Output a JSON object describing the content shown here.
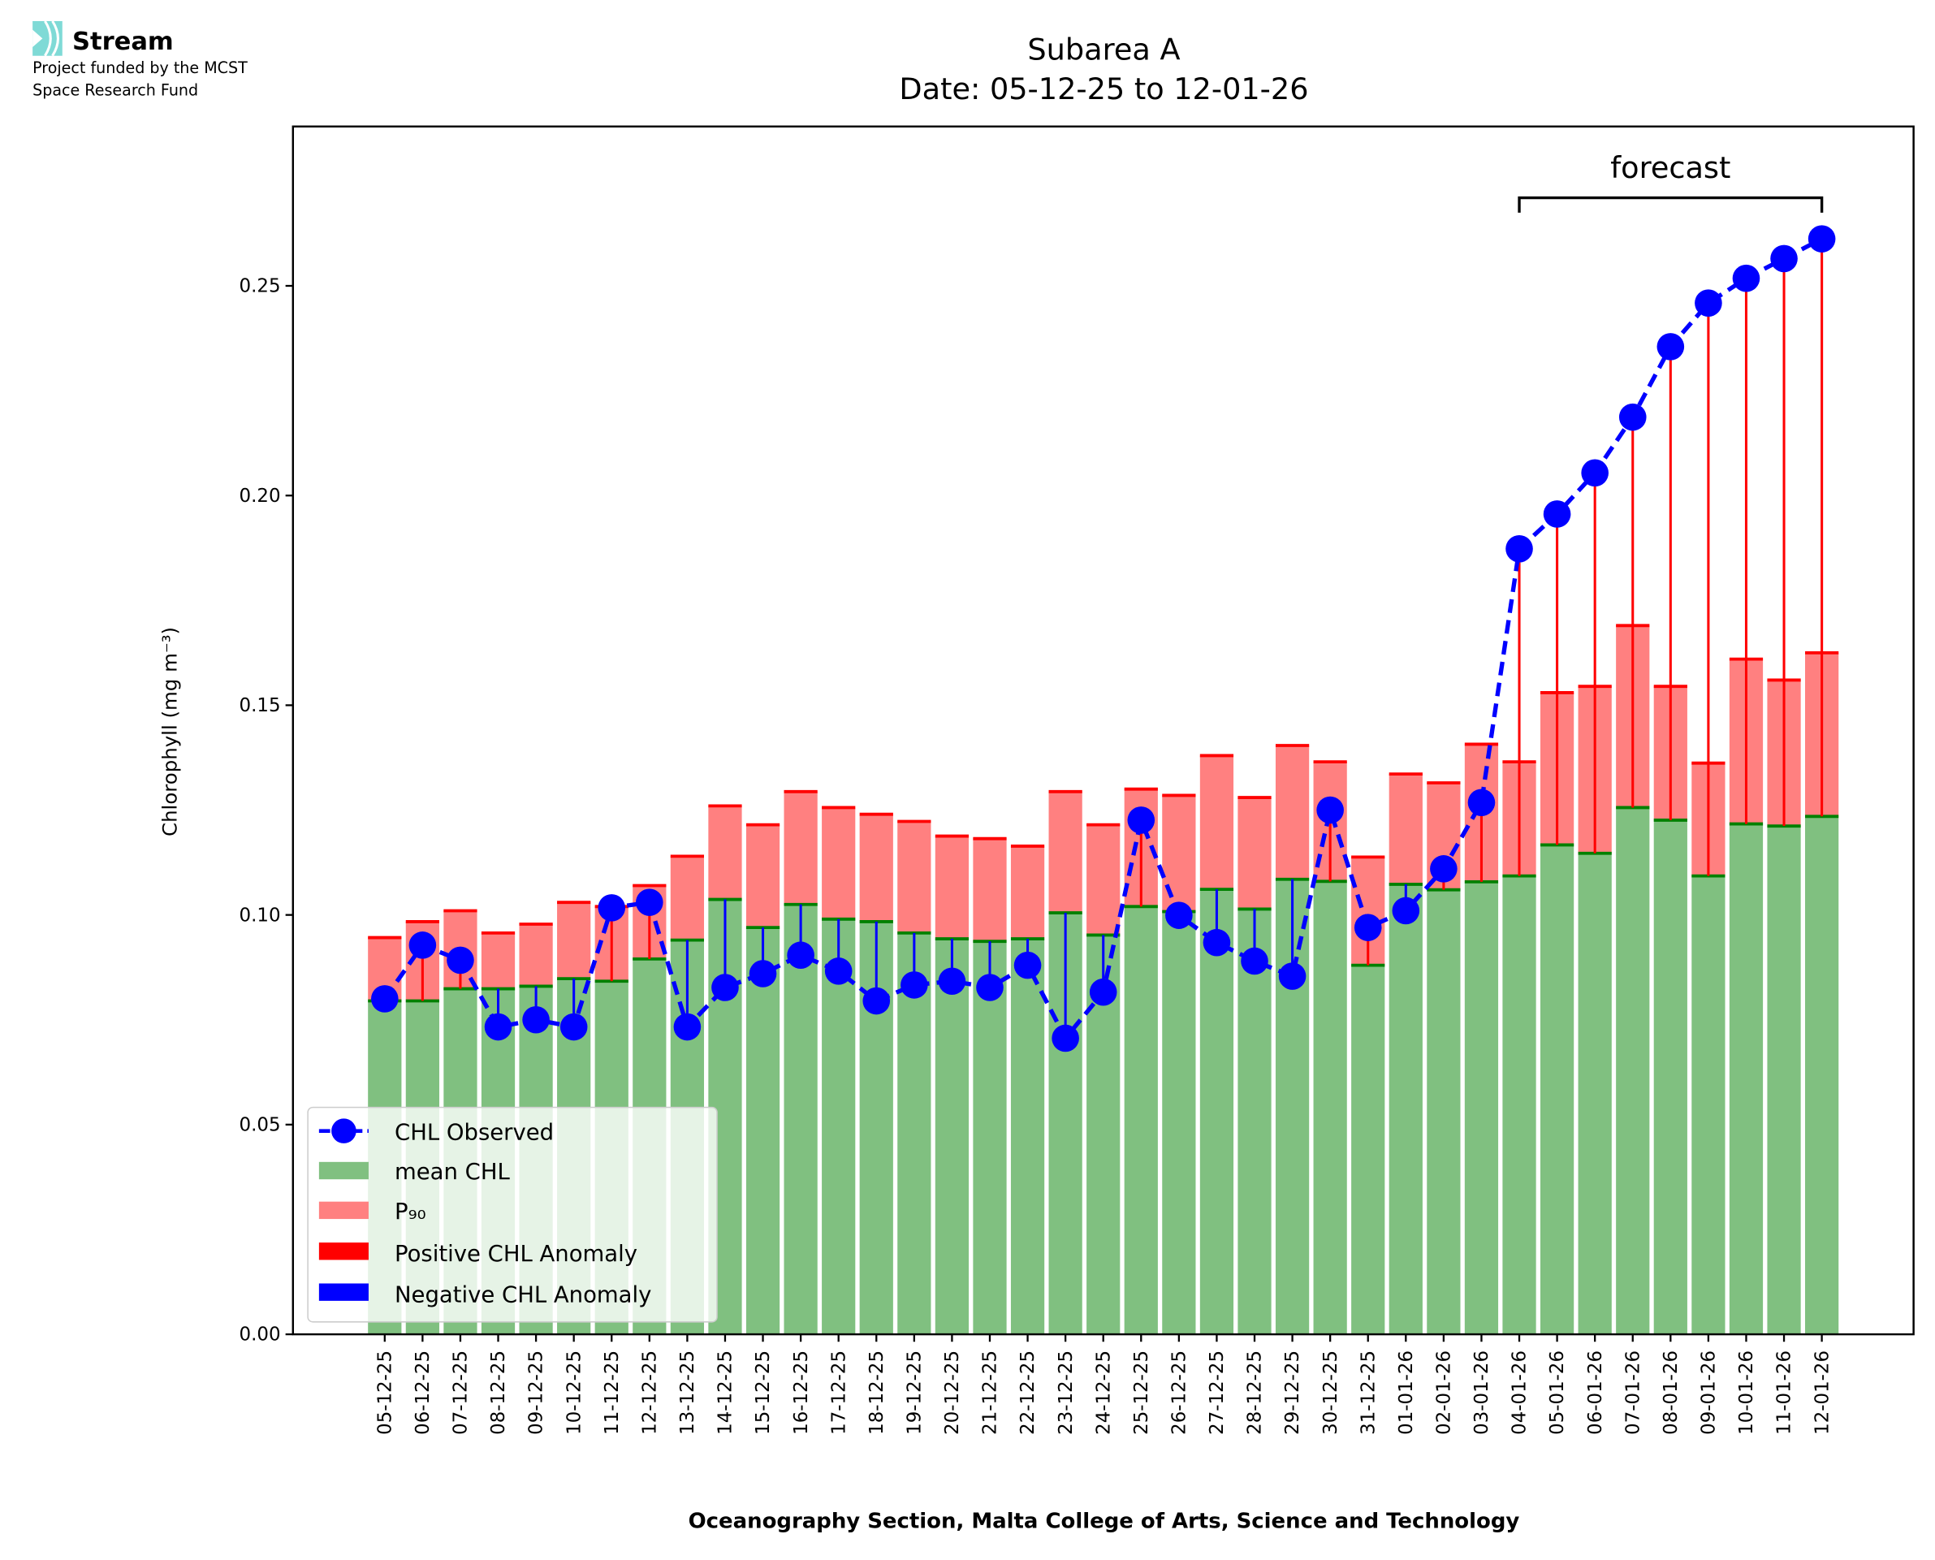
{
  "logo": {
    "name": "Stream",
    "line1": "Project funded by the MCST",
    "line2": "Space Research Fund",
    "color": "#7fdad6"
  },
  "chart_data": {
    "type": "bar",
    "title": "Subarea A",
    "subtitle": "Date: 05-12-25 to 12-01-26",
    "xlabel": "Oceanography Section, Malta College of Arts, Science and Technology",
    "ylabel": "Chlorophyll (mg m⁻³)",
    "ylim": [
      0,
      0.288
    ],
    "yticks": [
      "0.00",
      "0.05",
      "0.10",
      "0.15",
      "0.20",
      "0.25"
    ],
    "grid": false,
    "legend_position": "lower-left",
    "annotation": {
      "text": "forecast",
      "from": "04-01-26",
      "to": "12-01-26"
    },
    "categories": [
      "05-12-25",
      "06-12-25",
      "07-12-25",
      "08-12-25",
      "09-12-25",
      "10-12-25",
      "11-12-25",
      "12-12-25",
      "13-12-25",
      "14-12-25",
      "15-12-25",
      "16-12-25",
      "17-12-25",
      "18-12-25",
      "19-12-25",
      "20-12-25",
      "21-12-25",
      "22-12-25",
      "23-12-25",
      "24-12-25",
      "25-12-25",
      "26-12-25",
      "27-12-25",
      "28-12-25",
      "29-12-25",
      "30-12-25",
      "31-12-25",
      "01-01-26",
      "02-01-26",
      "03-01-26",
      "04-01-26",
      "05-01-26",
      "06-01-26",
      "07-01-26",
      "08-01-26",
      "09-01-26",
      "10-01-26",
      "11-01-26",
      "12-01-26"
    ],
    "series": [
      {
        "name": "CHL Observed",
        "color": "#0000ff",
        "values": [
          0.08,
          0.0928,
          0.0892,
          0.0733,
          0.075,
          0.0733,
          0.1017,
          0.103,
          0.0733,
          0.0827,
          0.086,
          0.0904,
          0.0866,
          0.0795,
          0.0833,
          0.0842,
          0.0827,
          0.088,
          0.0706,
          0.0816,
          0.1226,
          0.0999,
          0.0934,
          0.089,
          0.0854,
          0.125,
          0.097,
          0.101,
          0.111,
          0.1268,
          0.1873,
          0.1956,
          0.2054,
          0.2187,
          0.2355,
          0.2459,
          0.2518,
          0.2565,
          0.2612
        ]
      },
      {
        "name": "mean CHL",
        "color": "#80c080",
        "values": [
          0.0795,
          0.0795,
          0.0824,
          0.0824,
          0.083,
          0.0848,
          0.0842,
          0.0895,
          0.094,
          0.1037,
          0.097,
          0.1025,
          0.099,
          0.0984,
          0.0957,
          0.0943,
          0.0937,
          0.0943,
          0.1005,
          0.0952,
          0.102,
          0.1008,
          0.1061,
          0.1014,
          0.1085,
          0.108,
          0.088,
          0.1073,
          0.106,
          0.1079,
          0.1093,
          0.1167,
          0.1147,
          0.1256,
          0.1226,
          0.1093,
          0.1217,
          0.1212,
          0.1235
        ]
      },
      {
        "name": "P₉₀",
        "color": "#ff8080",
        "values": [
          0.0946,
          0.0984,
          0.101,
          0.0957,
          0.0978,
          0.103,
          0.102,
          0.107,
          0.114,
          0.126,
          0.1215,
          0.1294,
          0.1256,
          0.124,
          0.1223,
          0.1188,
          0.1182,
          0.1164,
          0.1294,
          0.1215,
          0.13,
          0.1285,
          0.138,
          0.128,
          0.1404,
          0.1365,
          0.1138,
          0.1336,
          0.1315,
          0.1407,
          0.1365,
          0.153,
          0.1545,
          0.169,
          0.1545,
          0.1362,
          0.161,
          0.156,
          0.1625
        ]
      }
    ],
    "anomaly_legend": [
      {
        "name": "Positive CHL Anomaly",
        "color": "#ff0000"
      },
      {
        "name": "Negative CHL Anomaly",
        "color": "#0000ff"
      }
    ]
  }
}
